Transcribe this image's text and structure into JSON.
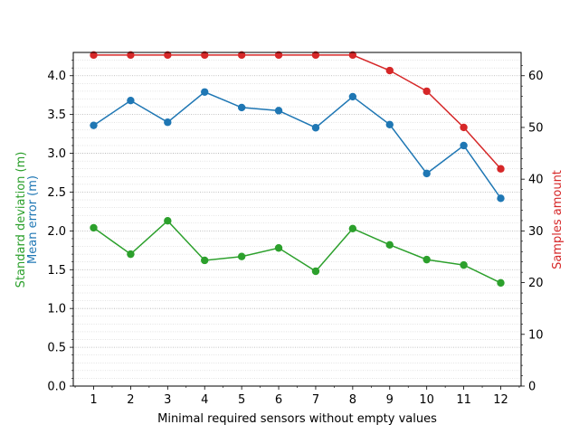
{
  "chart_data": {
    "type": "line",
    "xlabel": "Minimal required sensors without empty values",
    "ylabel_left_top": "Mean error (m)",
    "ylabel_left_bottom": "Standard deviation (m)",
    "ylabel_right": "Samples amount",
    "x": [
      1,
      2,
      3,
      4,
      5,
      6,
      7,
      8,
      9,
      10,
      11,
      12
    ],
    "xlim": [
      0.45,
      12.55
    ],
    "ylim_left": [
      0,
      4.3
    ],
    "ylim_right": [
      0,
      64.5
    ],
    "yticks_left": [
      "0.0",
      "0.5",
      "1.0",
      "1.5",
      "2.0",
      "2.5",
      "3.0",
      "3.5",
      "4.0"
    ],
    "yticks_right": [
      "0",
      "10",
      "20",
      "30",
      "40",
      "50",
      "60"
    ],
    "grid": "horizontal dotted (major and minor)",
    "series": [
      {
        "name": "Mean error (m)",
        "axis": "left",
        "color": "#1f77b4",
        "values": [
          3.36,
          3.68,
          3.4,
          3.79,
          3.59,
          3.55,
          3.33,
          3.73,
          3.37,
          2.74,
          3.1,
          2.42
        ]
      },
      {
        "name": "Standard deviation (m)",
        "axis": "left",
        "color": "#2ca02c",
        "values": [
          2.04,
          1.7,
          2.13,
          1.62,
          1.67,
          1.78,
          1.48,
          2.03,
          1.82,
          1.63,
          1.56,
          1.33
        ]
      },
      {
        "name": "Samples amount",
        "axis": "right",
        "color": "#d62728",
        "values": [
          64,
          64,
          64,
          64,
          64,
          64,
          64,
          64,
          61,
          57,
          50,
          42
        ]
      }
    ]
  }
}
